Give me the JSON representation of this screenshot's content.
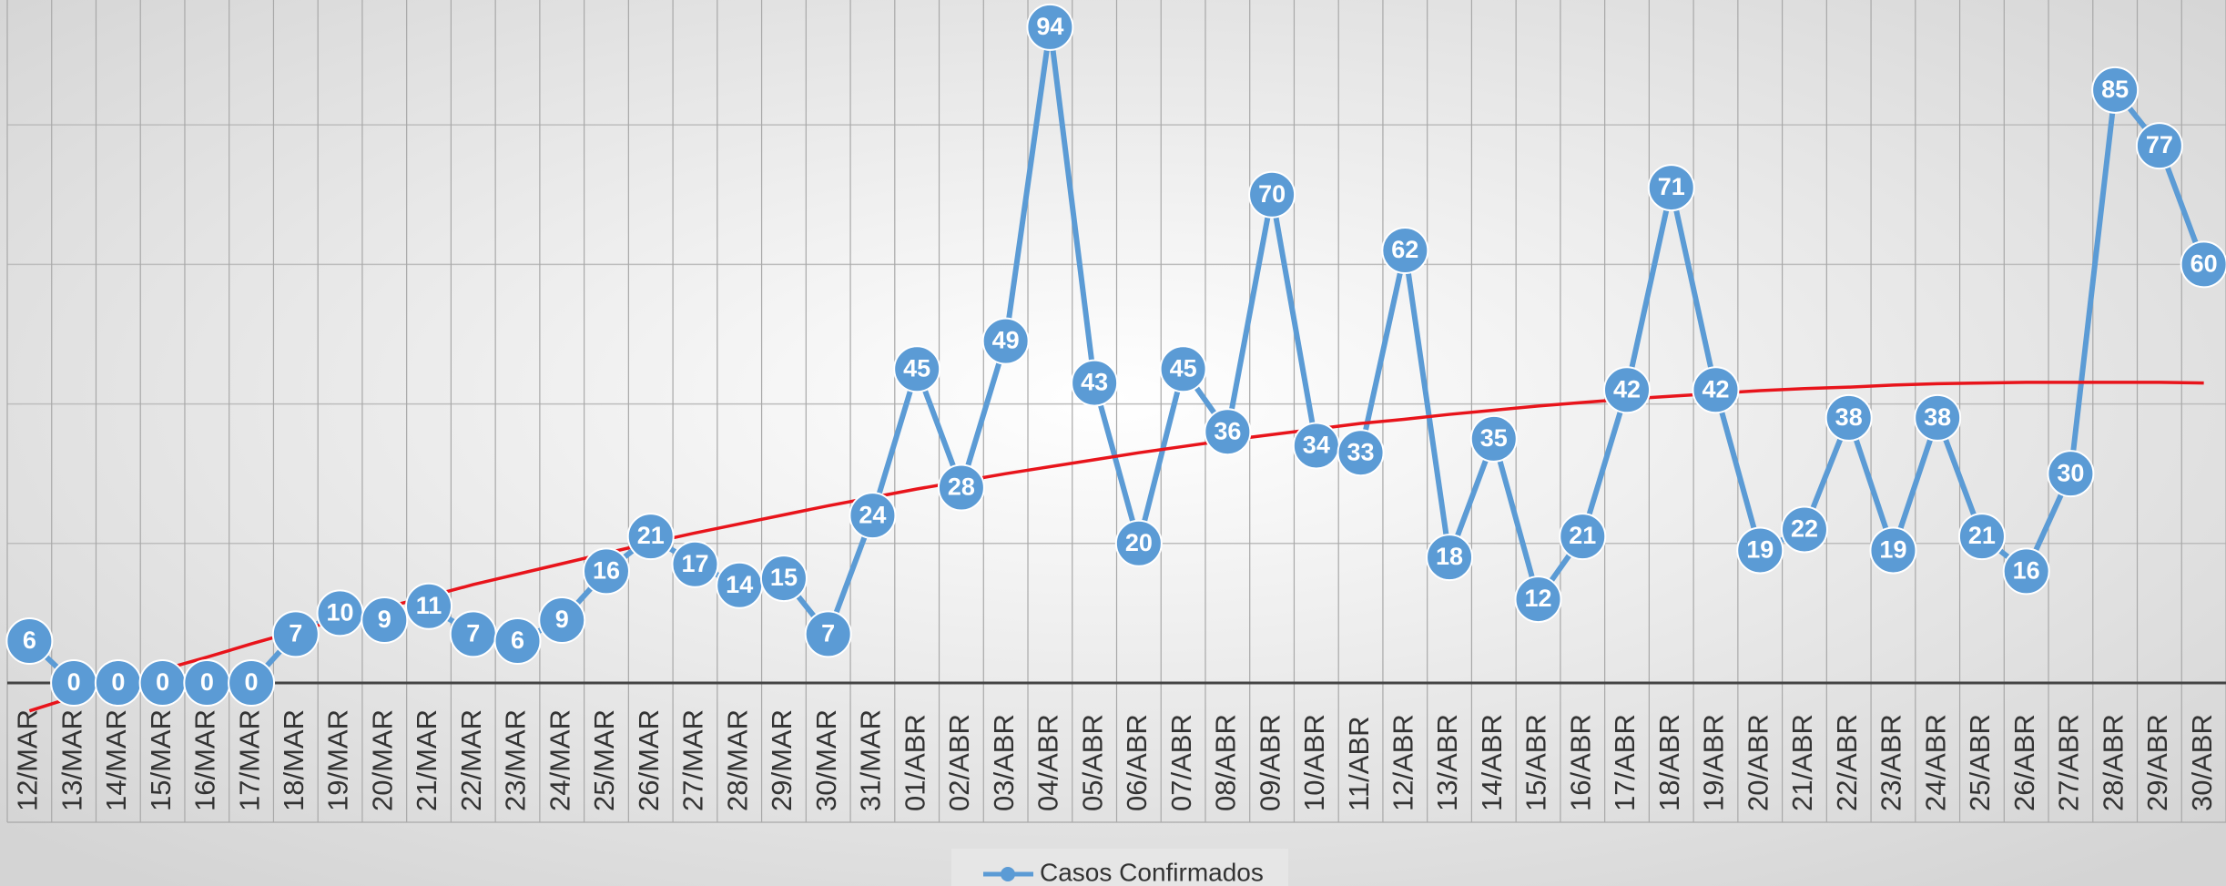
{
  "chart_data": {
    "type": "line",
    "categories": [
      "12/MAR",
      "13/MAR",
      "14/MAR",
      "15/MAR",
      "16/MAR",
      "17/MAR",
      "18/MAR",
      "19/MAR",
      "20/MAR",
      "21/MAR",
      "22/MAR",
      "23/MAR",
      "24/MAR",
      "25/MAR",
      "26/MAR",
      "27/MAR",
      "28/MAR",
      "29/MAR",
      "30/MAR",
      "31/MAR",
      "01/ABR",
      "02/ABR",
      "03/ABR",
      "04/ABR",
      "05/ABR",
      "06/ABR",
      "07/ABR",
      "08/ABR",
      "09/ABR",
      "10/ABR",
      "11/ABR",
      "12/ABR",
      "13/ABR",
      "14/ABR",
      "15/ABR",
      "16/ABR",
      "17/ABR",
      "18/ABR",
      "19/ABR",
      "20/ABR",
      "21/ABR",
      "22/ABR",
      "23/ABR",
      "24/ABR",
      "25/ABR",
      "26/ABR",
      "27/ABR",
      "28/ABR",
      "29/ABR",
      "30/ABR"
    ],
    "series": [
      {
        "name": "Casos Confirmados",
        "color": "#5b9bd5",
        "values": [
          6,
          0,
          0,
          0,
          0,
          0,
          7,
          10,
          9,
          11,
          7,
          6,
          9,
          16,
          21,
          17,
          14,
          15,
          7,
          24,
          45,
          28,
          49,
          94,
          43,
          20,
          45,
          36,
          70,
          34,
          33,
          62,
          18,
          35,
          12,
          21,
          42,
          71,
          42,
          19,
          22,
          38,
          19,
          38,
          21,
          16,
          30,
          85,
          77,
          60
        ]
      }
    ],
    "trendline": {
      "color": "#e8141b",
      "values": [
        -4,
        -2,
        0,
        1.9,
        3.7,
        5.6,
        7.4,
        9.1,
        10.8,
        12.4,
        14.1,
        15.6,
        17.1,
        18.6,
        20.1,
        21.5,
        22.8,
        24.1,
        25.4,
        26.6,
        27.8,
        28.9,
        30,
        31,
        32,
        33,
        33.9,
        34.8,
        35.6,
        36.4,
        37.2,
        37.8,
        38.5,
        39.1,
        39.7,
        40.2,
        40.7,
        41.1,
        41.5,
        41.9,
        42.2,
        42.4,
        42.7,
        42.9,
        43,
        43.1,
        43.1,
        43.1,
        43.1,
        43
      ]
    },
    "ylim": [
      0,
      97.9
    ],
    "yticks": [
      0,
      20,
      40,
      60,
      80
    ],
    "grid": true,
    "legend": "bottom"
  }
}
